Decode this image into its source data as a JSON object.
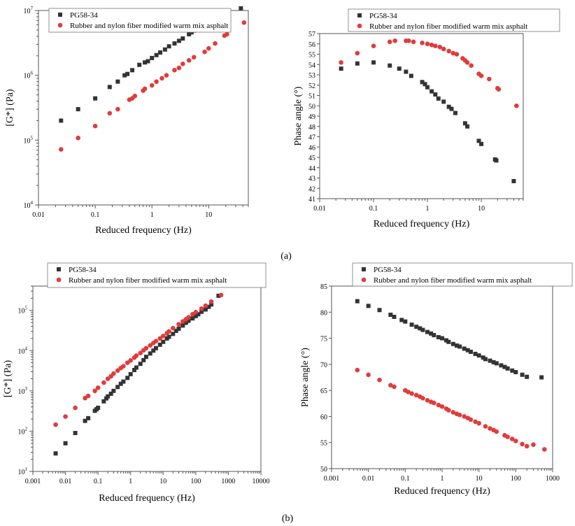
{
  "panel_labels": {
    "a": "(a)",
    "b": "(b)"
  },
  "legend": {
    "series1": "PG58-34",
    "series2": "Rubber and nylon fiber modified warm mix asphalt"
  },
  "colors": {
    "series1": "#333333",
    "series2": "#e03c3c"
  },
  "chart_data": [
    {
      "id": "a-left",
      "type": "scatter",
      "xlabel": "Reduced frequency (Hz)",
      "ylabel": "[G*]  (Pa)",
      "xscale": "log",
      "yscale": "log",
      "xlim": [
        0.01,
        50
      ],
      "ylim": [
        10000,
        10000000
      ],
      "xticks": [
        {
          "v": 0.01,
          "t": "0.01"
        },
        {
          "v": 0.1,
          "t": "0.1"
        },
        {
          "v": 1,
          "t": "1"
        },
        {
          "v": 10,
          "t": "10"
        }
      ],
      "yticks": [
        {
          "v": 10000,
          "b": "10",
          "e": "4"
        },
        {
          "v": 100000,
          "b": "10",
          "e": "5"
        },
        {
          "v": 1000000,
          "b": "10",
          "e": "6"
        },
        {
          "v": 10000000,
          "b": "10",
          "e": "7"
        }
      ],
      "legend_position": "top-left",
      "series": [
        {
          "key": "series1",
          "marker": "square",
          "x": [
            0.025,
            0.05,
            0.1,
            0.18,
            0.25,
            0.33,
            0.37,
            0.45,
            0.6,
            0.75,
            0.85,
            1.0,
            1.2,
            1.4,
            1.7,
            2.0,
            2.5,
            3.0,
            3.5,
            4.5,
            5.0,
            5.5,
            8.5,
            10,
            16,
            19,
            37
          ],
          "y": [
            200000,
            300000,
            440000,
            660000,
            800000,
            1000000,
            1050000,
            1200000,
            1450000,
            1580000,
            1650000,
            1850000,
            2050000,
            2250000,
            2500000,
            2800000,
            3100000,
            3400000,
            3700000,
            4300000,
            4600000,
            4900000,
            5800000,
            6400000,
            7800000,
            8300000,
            10800000
          ]
        },
        {
          "key": "series2",
          "marker": "circle",
          "x": [
            0.025,
            0.05,
            0.1,
            0.18,
            0.25,
            0.4,
            0.45,
            0.5,
            0.7,
            0.75,
            1.0,
            1.2,
            1.5,
            1.8,
            2.5,
            3.0,
            3.5,
            4.5,
            5.5,
            8.5,
            10,
            13,
            19,
            21,
            42
          ],
          "y": [
            72000,
            108000,
            165000,
            260000,
            300000,
            420000,
            440000,
            480000,
            580000,
            620000,
            700000,
            800000,
            900000,
            1000000,
            1200000,
            1300000,
            1500000,
            1700000,
            1900000,
            2300000,
            2600000,
            3100000,
            4100000,
            4300000,
            6500000
          ]
        }
      ]
    },
    {
      "id": "a-right",
      "type": "scatter",
      "xlabel": "Reduced frequency (Hz)",
      "ylabel": "Phase angle  (°)",
      "xscale": "log",
      "yscale": "linear",
      "xlim": [
        0.01,
        60
      ],
      "ylim": [
        41,
        57
      ],
      "xticks": [
        {
          "v": 0.01,
          "t": "0.01"
        },
        {
          "v": 0.1,
          "t": "0.1"
        },
        {
          "v": 1,
          "t": "1"
        },
        {
          "v": 10,
          "t": "10"
        }
      ],
      "yticks": [
        {
          "v": 41,
          "t": "41"
        },
        {
          "v": 42,
          "t": "42"
        },
        {
          "v": 43,
          "t": "43"
        },
        {
          "v": 44,
          "t": "44"
        },
        {
          "v": 45,
          "t": "45"
        },
        {
          "v": 46,
          "t": "46"
        },
        {
          "v": 47,
          "t": "47"
        },
        {
          "v": 48,
          "t": "48"
        },
        {
          "v": 49,
          "t": "49"
        },
        {
          "v": 50,
          "t": "50"
        },
        {
          "v": 51,
          "t": "51"
        },
        {
          "v": 52,
          "t": "52"
        },
        {
          "v": 53,
          "t": "53"
        },
        {
          "v": 54,
          "t": "54"
        },
        {
          "v": 55,
          "t": "55"
        },
        {
          "v": 56,
          "t": "56"
        },
        {
          "v": 57,
          "t": "57"
        }
      ],
      "legend_position": "top-right",
      "series": [
        {
          "key": "series1",
          "marker": "square",
          "x": [
            0.025,
            0.05,
            0.1,
            0.2,
            0.3,
            0.4,
            0.5,
            0.8,
            0.9,
            1.0,
            1.2,
            1.4,
            1.6,
            2.0,
            2.5,
            2.8,
            3.3,
            5.0,
            5.5,
            9.0,
            10,
            18,
            19,
            40
          ],
          "y": [
            53.6,
            54.1,
            54.2,
            53.9,
            53.6,
            53.3,
            52.9,
            52.3,
            52.1,
            51.8,
            51.4,
            51.1,
            50.7,
            50.4,
            49.9,
            49.7,
            49.3,
            48.3,
            48.0,
            46.6,
            46.3,
            44.8,
            44.7,
            42.7
          ]
        },
        {
          "key": "series2",
          "marker": "circle",
          "x": [
            0.025,
            0.05,
            0.1,
            0.2,
            0.25,
            0.4,
            0.45,
            0.55,
            0.8,
            1.0,
            1.2,
            1.4,
            1.7,
            2.0,
            2.5,
            3.0,
            3.5,
            4.5,
            5.0,
            5.5,
            6.5,
            9.0,
            10,
            14,
            20,
            21,
            45
          ],
          "y": [
            54.2,
            55.1,
            55.8,
            56.2,
            56.3,
            56.3,
            56.3,
            56.2,
            56.1,
            56.0,
            55.9,
            55.8,
            55.7,
            55.5,
            55.3,
            55.1,
            55.0,
            54.6,
            54.4,
            54.2,
            53.9,
            53.1,
            52.9,
            52.6,
            51.7,
            51.6,
            50.0
          ]
        }
      ]
    },
    {
      "id": "b-left",
      "type": "scatter",
      "xlabel": "Reduced frequency (Hz)",
      "ylabel": "[G*]    (Pa)",
      "xscale": "log",
      "yscale": "log",
      "xlim": [
        0.001,
        10000
      ],
      "ylim": [
        10,
        400000
      ],
      "xticks": [
        {
          "v": 0.001,
          "t": "0.001"
        },
        {
          "v": 0.01,
          "t": "0.01"
        },
        {
          "v": 0.1,
          "t": "0.1"
        },
        {
          "v": 1,
          "t": "1"
        },
        {
          "v": 10,
          "t": "10"
        },
        {
          "v": 100,
          "t": "100"
        },
        {
          "v": 1000,
          "t": "1000"
        },
        {
          "v": 10000,
          "t": "10000"
        }
      ],
      "yticks": [
        {
          "v": 10,
          "b": "10",
          "e": "1"
        },
        {
          "v": 100,
          "b": "10",
          "e": "2"
        },
        {
          "v": 1000,
          "b": "10",
          "e": "3"
        },
        {
          "v": 10000,
          "b": "10",
          "e": "4"
        },
        {
          "v": 100000,
          "b": "10",
          "e": "5"
        }
      ],
      "legend_position": "top-left",
      "series": [
        {
          "key": "series1",
          "marker": "square",
          "x": [
            0.005,
            0.01,
            0.02,
            0.04,
            0.05,
            0.08,
            0.09,
            0.1,
            0.15,
            0.18,
            0.2,
            0.25,
            0.3,
            0.4,
            0.5,
            0.6,
            0.8,
            1.0,
            1.3,
            1.5,
            2.0,
            2.5,
            3.0,
            4.0,
            5.0,
            6.0,
            8.0,
            10,
            13,
            15,
            20,
            25,
            30,
            40,
            50,
            60,
            80,
            100,
            120,
            150,
            200,
            250,
            300,
            500
          ],
          "y": [
            28,
            50,
            90,
            180,
            210,
            320,
            350,
            380,
            550,
            650,
            730,
            850,
            1000,
            1250,
            1500,
            1700,
            2100,
            2600,
            3300,
            3800,
            4700,
            5800,
            7000,
            8500,
            10000,
            11500,
            14000,
            16500,
            20000,
            22000,
            26000,
            31000,
            35000,
            42000,
            49000,
            55000,
            63000,
            72000,
            80000,
            92000,
            105000,
            122000,
            140000,
            230000
          ]
        },
        {
          "key": "series2",
          "marker": "circle",
          "x": [
            0.005,
            0.01,
            0.02,
            0.04,
            0.05,
            0.08,
            0.1,
            0.15,
            0.2,
            0.25,
            0.3,
            0.4,
            0.5,
            0.6,
            0.8,
            1.0,
            1.3,
            1.5,
            2.0,
            2.5,
            3.0,
            4.0,
            5.0,
            6.0,
            8.0,
            10,
            13,
            15,
            20,
            30,
            40,
            50,
            60,
            80,
            100,
            150,
            200,
            300,
            600
          ],
          "y": [
            145,
            230,
            380,
            660,
            750,
            1000,
            1200,
            1600,
            2000,
            2300,
            2700,
            3200,
            3700,
            4100,
            5000,
            5700,
            6700,
            7500,
            8700,
            10200,
            11500,
            13500,
            15500,
            17200,
            20000,
            23000,
            27000,
            30000,
            36000,
            45000,
            53000,
            60000,
            67000,
            80000,
            90000,
            110000,
            130000,
            165000,
            240000
          ]
        }
      ]
    },
    {
      "id": "b-right",
      "type": "scatter",
      "xlabel": "Reduced frequency (Hz)",
      "ylabel": "Phase angle   (°)",
      "xscale": "log",
      "yscale": "linear",
      "xlim": [
        0.001,
        1000
      ],
      "ylim": [
        50,
        85
      ],
      "xticks": [
        {
          "v": 0.001,
          "t": "0.001"
        },
        {
          "v": 0.01,
          "t": "0.01"
        },
        {
          "v": 0.1,
          "t": "0.1"
        },
        {
          "v": 1,
          "t": "1"
        },
        {
          "v": 10,
          "t": "10"
        },
        {
          "v": 100,
          "t": "100"
        },
        {
          "v": 1000,
          "t": "1000"
        }
      ],
      "yticks": [
        {
          "v": 50,
          "t": "50"
        },
        {
          "v": 55,
          "t": "55"
        },
        {
          "v": 60,
          "t": "60"
        },
        {
          "v": 65,
          "t": "65"
        },
        {
          "v": 70,
          "t": "70"
        },
        {
          "v": 75,
          "t": "75"
        },
        {
          "v": 80,
          "t": "80"
        },
        {
          "v": 85,
          "t": "85"
        }
      ],
      "legend_position": "top-right",
      "series": [
        {
          "key": "series1",
          "marker": "square",
          "x": [
            0.005,
            0.01,
            0.02,
            0.04,
            0.05,
            0.08,
            0.1,
            0.15,
            0.2,
            0.25,
            0.3,
            0.4,
            0.5,
            0.6,
            0.8,
            1.0,
            1.3,
            1.5,
            2.0,
            2.5,
            3.0,
            4.0,
            5.0,
            6.0,
            8.0,
            10,
            13,
            15,
            20,
            25,
            30,
            40,
            50,
            60,
            80,
            100,
            150,
            200,
            500
          ],
          "y": [
            82.1,
            81.2,
            80.4,
            79.5,
            79.1,
            78.5,
            78.2,
            77.6,
            77.2,
            76.9,
            76.6,
            76.2,
            75.9,
            75.6,
            75.2,
            75.0,
            74.6,
            74.3,
            73.9,
            73.6,
            73.4,
            73.0,
            72.7,
            72.4,
            72.0,
            71.7,
            71.3,
            71.0,
            70.7,
            70.4,
            70.2,
            69.8,
            69.5,
            69.2,
            68.8,
            68.5,
            68.0,
            67.6,
            67.5
          ]
        },
        {
          "key": "series2",
          "marker": "circle",
          "x": [
            0.005,
            0.01,
            0.02,
            0.04,
            0.05,
            0.1,
            0.12,
            0.15,
            0.2,
            0.25,
            0.3,
            0.4,
            0.5,
            0.6,
            0.8,
            1.0,
            1.3,
            1.5,
            2.0,
            2.5,
            3.0,
            4.0,
            5.0,
            6.0,
            8.0,
            10,
            15,
            20,
            25,
            30,
            50,
            60,
            80,
            100,
            150,
            200,
            300,
            600
          ],
          "y": [
            68.9,
            68.0,
            67.0,
            66.0,
            65.7,
            65.0,
            64.7,
            64.4,
            64.1,
            63.8,
            63.5,
            63.1,
            62.8,
            62.6,
            62.2,
            61.9,
            61.5,
            61.2,
            60.8,
            60.5,
            60.3,
            60.0,
            59.7,
            59.4,
            59.0,
            58.7,
            58.1,
            57.7,
            57.4,
            57.1,
            56.4,
            56.1,
            55.7,
            55.3,
            54.7,
            54.3,
            54.6,
            53.7
          ]
        }
      ]
    }
  ]
}
